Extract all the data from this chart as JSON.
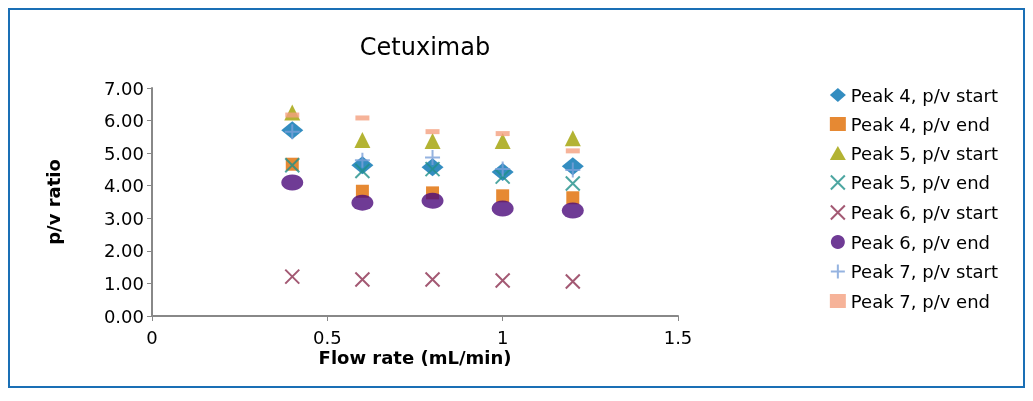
{
  "chart_data": {
    "type": "scatter",
    "title": "Cetuximab",
    "xlabel": "Flow rate (mL/min)",
    "ylabel": "p/v ratio",
    "x": [
      0.4,
      0.6,
      0.8,
      1.0,
      1.2
    ],
    "xlim": [
      0,
      1.5
    ],
    "xticks": [
      0,
      0.5,
      1,
      1.5
    ],
    "ylim": [
      0,
      7
    ],
    "yticks": [
      {
        "value": 0,
        "label": "0.00"
      },
      {
        "value": 1,
        "label": "1.00"
      },
      {
        "value": 2,
        "label": "2.00"
      },
      {
        "value": 3,
        "label": "3.00"
      },
      {
        "value": 4,
        "label": "4.00"
      },
      {
        "value": 5,
        "label": "5.00"
      },
      {
        "value": 6,
        "label": "6.00"
      },
      {
        "value": 7,
        "label": "7.00"
      }
    ],
    "grid": false,
    "legend": "right",
    "series": [
      {
        "name": "Peak 4, p/v start",
        "color": "#0070b0",
        "marker": "diamond",
        "values": [
          5.7,
          4.63,
          4.57,
          4.42,
          4.6
        ]
      },
      {
        "name": "Peak 4, p/v end",
        "color": "#e06c00",
        "marker": "square",
        "values": [
          4.66,
          3.83,
          3.78,
          3.69,
          3.63
        ]
      },
      {
        "name": "Peak 5, p/v start",
        "color": "#a0a000",
        "marker": "triangle",
        "values": [
          6.25,
          5.4,
          5.37,
          5.37,
          5.46
        ]
      },
      {
        "name": "Peak 5, p/v end",
        "color": "#20908a",
        "marker": "cross",
        "values": [
          4.63,
          4.45,
          4.51,
          4.28,
          4.07
        ]
      },
      {
        "name": "Peak 6, p/v start",
        "color": "#8c3050",
        "marker": "cross",
        "values": [
          1.21,
          1.12,
          1.12,
          1.09,
          1.06
        ]
      },
      {
        "name": "Peak 6, p/v end",
        "color": "#4b0a7a",
        "marker": "circle",
        "values": [
          4.1,
          3.48,
          3.54,
          3.3,
          3.24
        ]
      },
      {
        "name": "Peak 7, p/v start",
        "color": "#7aa0d8",
        "marker": "plus",
        "values": [
          5.66,
          4.78,
          4.87,
          4.51,
          4.48
        ]
      },
      {
        "name": "Peak 7, p/v end",
        "color": "#f4a080",
        "values": [
          6.17,
          6.08,
          5.66,
          5.6,
          5.07
        ]
      }
    ]
  }
}
